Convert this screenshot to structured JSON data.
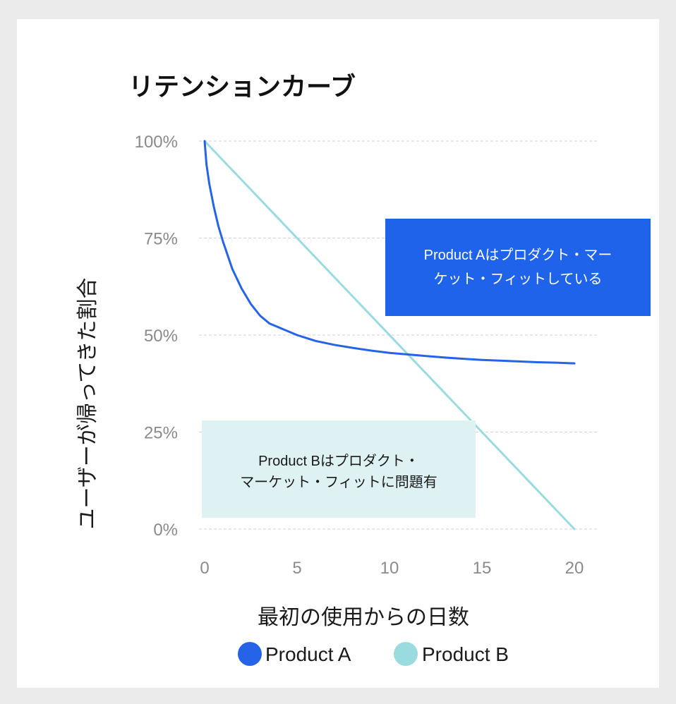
{
  "chart_data": {
    "type": "line",
    "title": "リテンションカーブ",
    "xlabel": "最初の使用からの日数",
    "ylabel": "ユーザーが帰ってきた割合",
    "x_ticks": [
      "0",
      "5",
      "10",
      "15",
      "20"
    ],
    "y_ticks": [
      "0%",
      "25%",
      "50%",
      "75%",
      "100%"
    ],
    "xlim": [
      0,
      20
    ],
    "ylim": [
      0,
      100
    ],
    "grid": "horizontal-dashed",
    "legend": "bottom-center",
    "series": [
      {
        "name": "Product A",
        "color": "#2563e8",
        "x": [
          0,
          0.1,
          0.25,
          0.5,
          0.75,
          1,
          1.5,
          2,
          2.5,
          3,
          3.5,
          4,
          5,
          6,
          7,
          8,
          9,
          10,
          11,
          12,
          13,
          14,
          15,
          16,
          17,
          18,
          19,
          20
        ],
        "y": [
          100,
          94,
          89,
          83,
          78,
          74,
          67,
          62,
          58,
          55,
          53,
          52,
          50,
          48.5,
          47.5,
          46.7,
          46,
          45.4,
          45,
          44.6,
          44.2,
          43.9,
          43.6,
          43.4,
          43.2,
          43,
          42.9,
          42.7
        ]
      },
      {
        "name": "Product B",
        "color": "#9adbe0",
        "x": [
          0,
          20
        ],
        "y": [
          100,
          0
        ]
      }
    ],
    "annotations": [
      {
        "text_lines": [
          "Product Aはプロダクト・マー",
          "ケット・フィットしている"
        ],
        "fill": "#1f63ea",
        "text_color": "#ffffff"
      },
      {
        "text_lines": [
          "Product Bはプロダクト・",
          "マーケット・フィットに問題有"
        ],
        "fill": "#def2f4",
        "text_color": "#1a1a1a"
      }
    ]
  }
}
